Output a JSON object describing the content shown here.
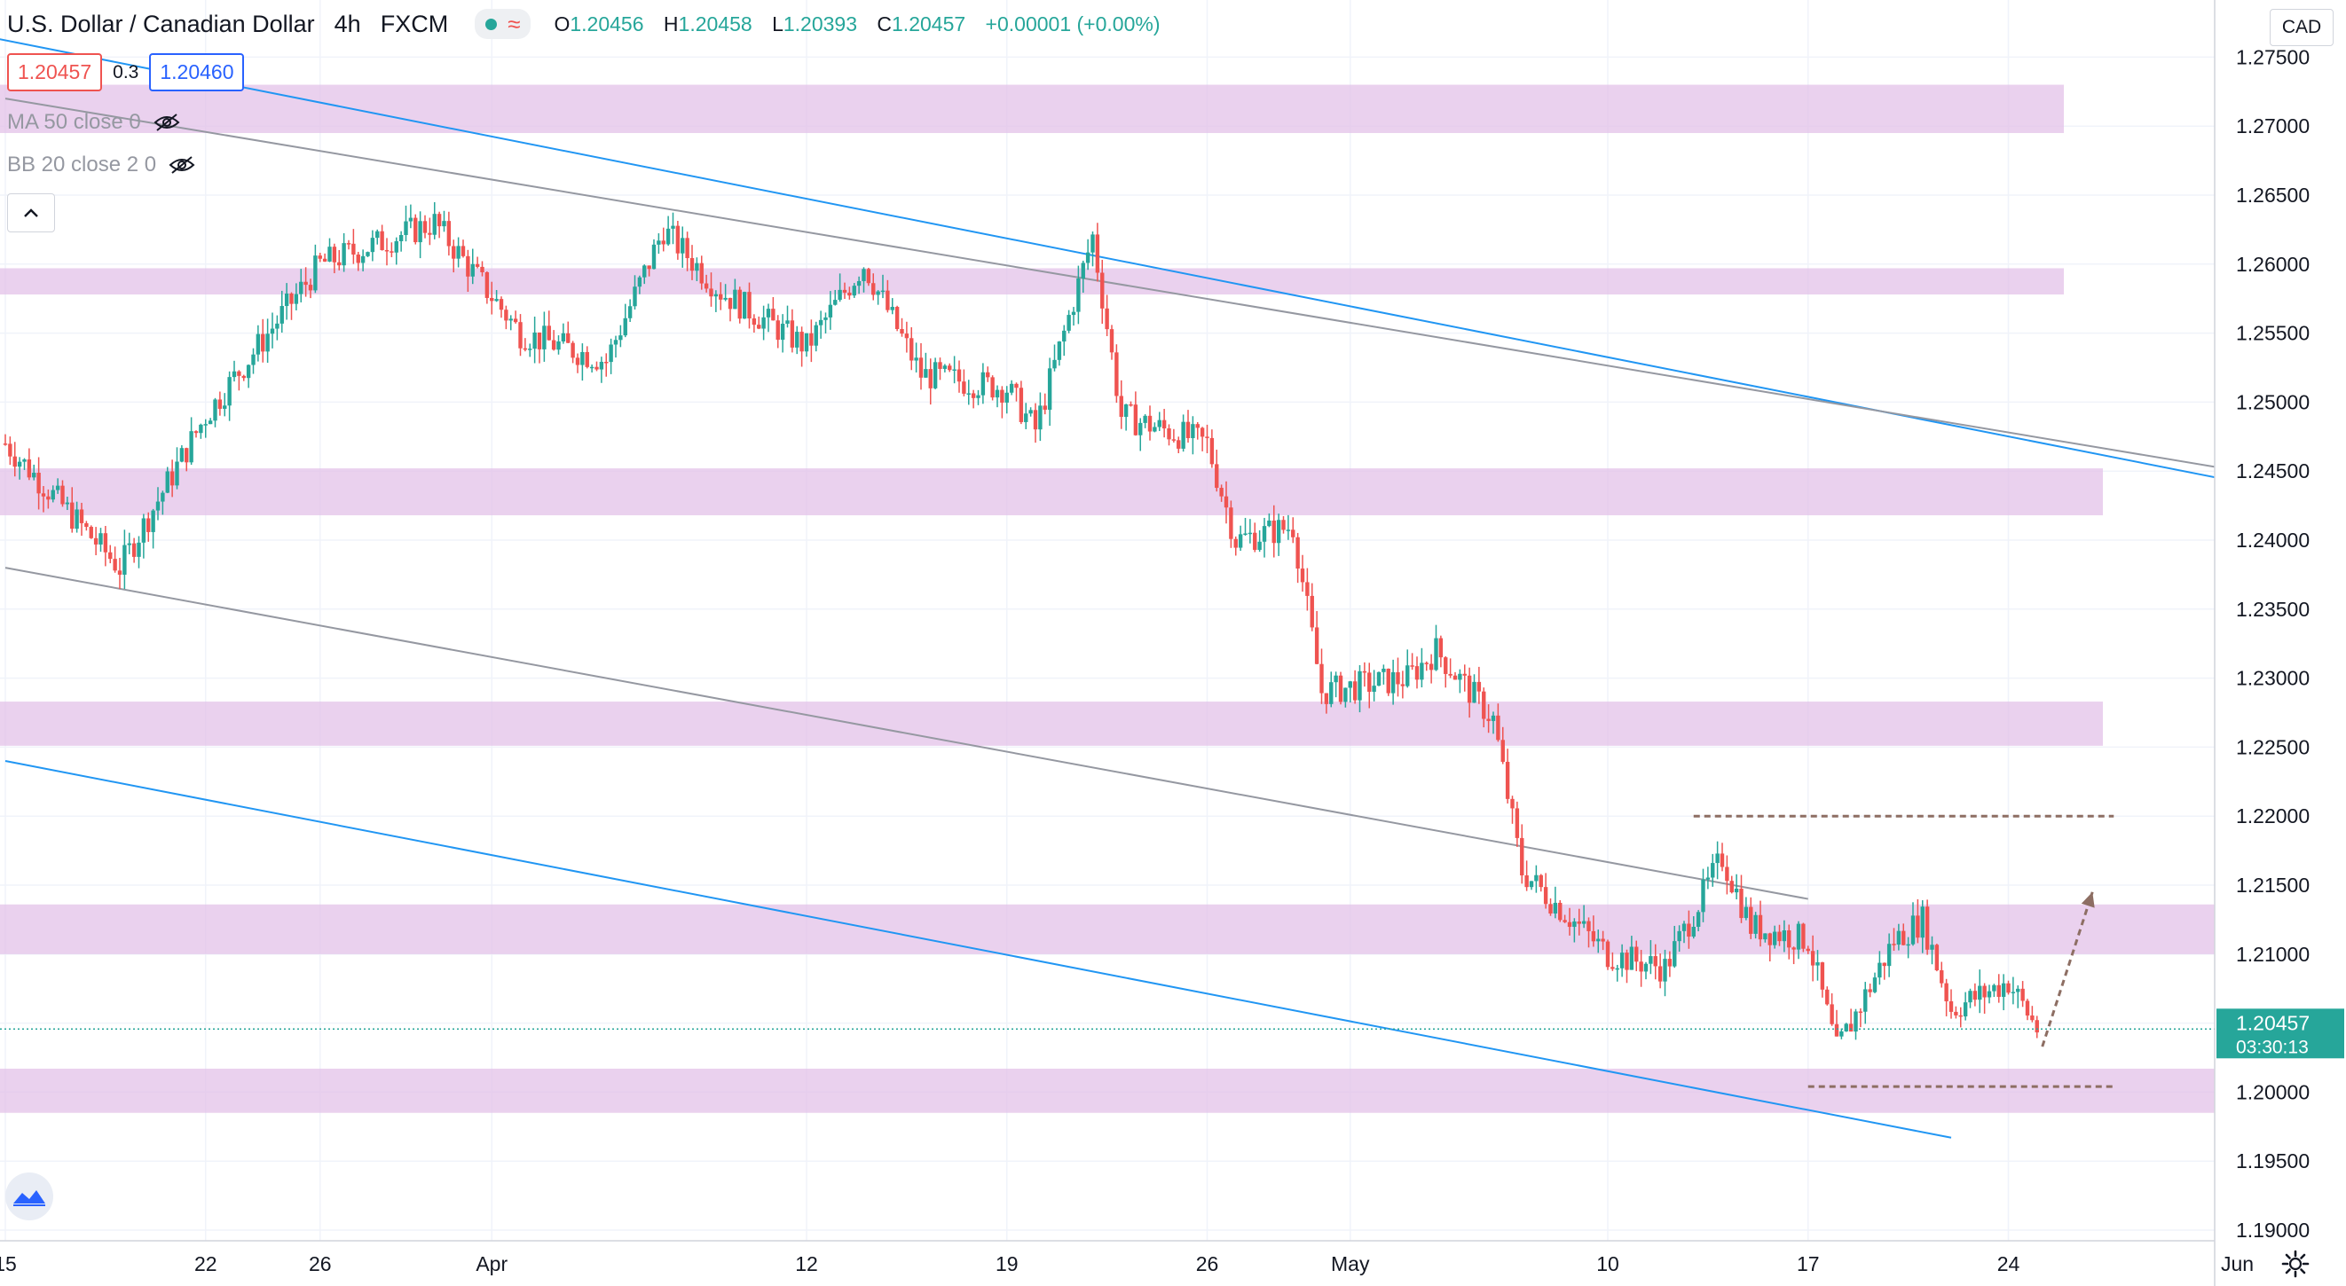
{
  "header": {
    "symbol": "U.S. Dollar / Canadian Dollar",
    "interval": "4h",
    "exchange": "FXCM",
    "ohlc": {
      "o_label": "O",
      "o": "1.20456",
      "h_label": "H",
      "h": "1.20458",
      "l_label": "L",
      "l": "1.20393",
      "c_label": "C",
      "c": "1.20457",
      "change": "+0.00001 (+0.00%)"
    }
  },
  "trade": {
    "sell": "1.20457",
    "spread": "0.3",
    "buy": "1.20460"
  },
  "indicators": {
    "ma": "MA 50 close 0",
    "bb": "BB 20 close 2 0"
  },
  "currency": "CAD",
  "price_label": {
    "price": "1.20457",
    "countdown": "03:30:13"
  },
  "colors": {
    "up": "#26a69a",
    "down": "#ef5350",
    "zone": "#e1bee7",
    "blue_line": "#2196f3",
    "gray_line": "#9598a1",
    "dashed": "#8d6e63",
    "last_price": "#26a69a"
  },
  "chart_data": {
    "type": "candlestick",
    "ylim": [
      1.188,
      1.277
    ],
    "x_tick_labels": [
      "15",
      "22",
      "26",
      "Apr",
      "12",
      "19",
      "26",
      "May",
      "10",
      "17",
      "24",
      "Jun"
    ],
    "y_tick_labels": [
      "1.27500",
      "1.27000",
      "1.26500",
      "1.26000",
      "1.25500",
      "1.25000",
      "1.24500",
      "1.24000",
      "1.23500",
      "1.23000",
      "1.22500",
      "1.22000",
      "1.21500",
      "1.21000",
      "1.20500",
      "1.20000",
      "1.19500",
      "1.19000"
    ],
    "zones": [
      {
        "from": 1.2695,
        "to": 1.273
      },
      {
        "from": 1.2578,
        "to": 1.2597
      },
      {
        "from": 1.2418,
        "to": 1.2452
      },
      {
        "from": 1.2251,
        "to": 1.2283
      },
      {
        "from": 1.21,
        "to": 1.2136
      },
      {
        "from": 1.1985,
        "to": 1.2017
      }
    ],
    "anchor_points": [
      {
        "date": "Mar 15",
        "price": 1.247
      },
      {
        "date": "Mar 19",
        "price": 1.238
      },
      {
        "date": "Mar 22",
        "price": 1.249
      },
      {
        "date": "Mar 26",
        "price": 1.26
      },
      {
        "date": "Mar 30",
        "price": 1.263
      },
      {
        "date": "Apr 2",
        "price": 1.255
      },
      {
        "date": "Apr 5",
        "price": 1.253
      },
      {
        "date": "Apr 7",
        "price": 1.2625
      },
      {
        "date": "Apr 9",
        "price": 1.258
      },
      {
        "date": "Apr 12",
        "price": 1.254
      },
      {
        "date": "Apr 14",
        "price": 1.26
      },
      {
        "date": "Apr 16",
        "price": 1.252
      },
      {
        "date": "Apr 19",
        "price": 1.251
      },
      {
        "date": "Apr 20",
        "price": 1.248
      },
      {
        "date": "Apr 22",
        "price": 1.262
      },
      {
        "date": "Apr 23",
        "price": 1.249
      },
      {
        "date": "Apr 26",
        "price": 1.247
      },
      {
        "date": "Apr 27",
        "price": 1.24
      },
      {
        "date": "Apr 29",
        "price": 1.241
      },
      {
        "date": "Apr 30",
        "price": 1.229
      },
      {
        "date": "May 3",
        "price": 1.23
      },
      {
        "date": "May 4",
        "price": 1.232
      },
      {
        "date": "May 6",
        "price": 1.227
      },
      {
        "date": "May 7",
        "price": 1.216
      },
      {
        "date": "May 10",
        "price": 1.21
      },
      {
        "date": "May 12",
        "price": 1.209
      },
      {
        "date": "May 14",
        "price": 1.217
      },
      {
        "date": "May 15",
        "price": 1.212
      },
      {
        "date": "May 17",
        "price": 1.211
      },
      {
        "date": "May 18",
        "price": 1.203
      },
      {
        "date": "May 20",
        "price": 1.211
      },
      {
        "date": "May 21",
        "price": 1.2125
      },
      {
        "date": "May 22",
        "price": 1.206
      },
      {
        "date": "May 24",
        "price": 1.208
      },
      {
        "date": "May 25",
        "price": 1.2046
      }
    ],
    "trend_lines": [
      {
        "color": "blue",
        "from": {
          "date": "Mar 7",
          "price": 1.2795
        },
        "to": {
          "date": "Jun 4",
          "price": 1.243
        }
      },
      {
        "color": "gray",
        "from": {
          "date": "Mar 15",
          "price": 1.272
        },
        "to": {
          "date": "Jun 4",
          "price": 1.244
        }
      },
      {
        "color": "gray",
        "from": {
          "date": "Mar 15",
          "price": 1.238
        },
        "to": {
          "date": "May 17",
          "price": 1.214
        }
      },
      {
        "color": "blue",
        "from": {
          "date": "Mar 15",
          "price": 1.224
        },
        "to": {
          "date": "May 22",
          "price": 1.1967
        }
      }
    ],
    "range_lines": [
      {
        "price": 1.22,
        "from": "May 13",
        "to": "May 27"
      },
      {
        "price": 1.2004,
        "from": "May 17",
        "to": "May 27"
      }
    ],
    "projection_arrow": {
      "from": {
        "date": "May 25",
        "price": 1.2033
      },
      "to": {
        "date": "May 27",
        "price": 1.2145
      }
    },
    "last_price": 1.20457
  }
}
